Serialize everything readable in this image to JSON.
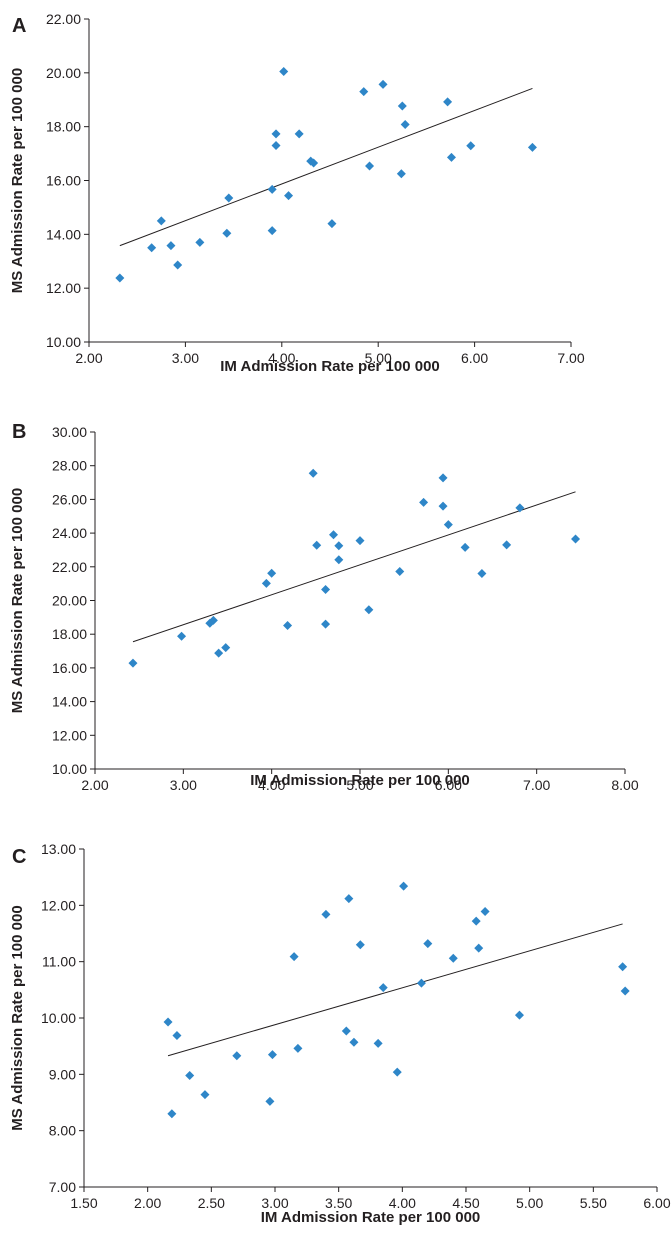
{
  "colors": {
    "marker": "#2e86c8",
    "axis": "#231f20"
  },
  "chart_data": [
    {
      "type": "scatter",
      "panel_label": "A",
      "xlabel": "IM Admission Rate per 100 000",
      "ylabel": "MS Admission Rate per 100 000",
      "xlim": [
        2,
        7
      ],
      "ylim": [
        10,
        22
      ],
      "x_ticks": [
        "2.00",
        "3.00",
        "4.00",
        "5.00",
        "6.00",
        "7.00"
      ],
      "y_ticks": [
        "10.00",
        "12.00",
        "14.00",
        "16.00",
        "18.00",
        "20.00",
        "22.00"
      ],
      "x_tick_values": [
        2,
        3,
        4,
        5,
        6,
        7
      ],
      "y_tick_values": [
        10,
        12,
        14,
        16,
        18,
        20,
        22
      ],
      "points": [
        [
          2.32,
          12.38
        ],
        [
          2.65,
          13.5
        ],
        [
          2.75,
          14.5
        ],
        [
          2.85,
          13.58
        ],
        [
          2.92,
          12.86
        ],
        [
          3.15,
          13.7
        ],
        [
          3.43,
          14.04
        ],
        [
          3.45,
          15.35
        ],
        [
          3.9,
          14.14
        ],
        [
          3.9,
          15.67
        ],
        [
          3.94,
          17.73
        ],
        [
          3.94,
          17.3
        ],
        [
          4.02,
          20.05
        ],
        [
          4.07,
          15.44
        ],
        [
          4.18,
          17.73
        ],
        [
          4.3,
          16.72
        ],
        [
          4.33,
          16.65
        ],
        [
          4.52,
          14.4
        ],
        [
          4.85,
          19.3
        ],
        [
          4.91,
          16.54
        ],
        [
          5.05,
          19.57
        ],
        [
          5.24,
          16.25
        ],
        [
          5.25,
          18.77
        ],
        [
          5.28,
          18.08
        ],
        [
          5.72,
          18.92
        ],
        [
          5.76,
          16.86
        ],
        [
          5.96,
          17.29
        ],
        [
          6.6,
          17.23
        ]
      ],
      "trendline": [
        [
          2.32,
          13.58
        ],
        [
          6.6,
          19.42
        ]
      ]
    },
    {
      "type": "scatter",
      "panel_label": "B",
      "xlabel": "IM Admission Rate per 100 000",
      "ylabel": "MS Admission Rate per 100 000",
      "xlim": [
        2,
        8
      ],
      "ylim": [
        10,
        30
      ],
      "x_ticks": [
        "2.00",
        "3.00",
        "4.00",
        "5.00",
        "6.00",
        "7.00",
        "8.00"
      ],
      "y_ticks": [
        "10.00",
        "12.00",
        "14.00",
        "16.00",
        "18.00",
        "20.00",
        "22.00",
        "24.00",
        "26.00",
        "28.00",
        "30.00"
      ],
      "x_tick_values": [
        2,
        3,
        4,
        5,
        6,
        7,
        8
      ],
      "y_tick_values": [
        10,
        12,
        14,
        16,
        18,
        20,
        22,
        24,
        26,
        28,
        30
      ],
      "points": [
        [
          2.43,
          16.28
        ],
        [
          2.98,
          17.88
        ],
        [
          3.3,
          18.65
        ],
        [
          3.34,
          18.82
        ],
        [
          3.4,
          16.88
        ],
        [
          3.48,
          17.2
        ],
        [
          3.94,
          21.02
        ],
        [
          4.0,
          21.62
        ],
        [
          4.18,
          18.52
        ],
        [
          4.47,
          27.55
        ],
        [
          4.51,
          23.28
        ],
        [
          4.61,
          20.65
        ],
        [
          4.61,
          18.6
        ],
        [
          4.7,
          23.9
        ],
        [
          4.76,
          22.42
        ],
        [
          4.76,
          23.25
        ],
        [
          5.0,
          23.55
        ],
        [
          5.1,
          19.45
        ],
        [
          5.45,
          21.72
        ],
        [
          5.72,
          25.82
        ],
        [
          5.94,
          27.28
        ],
        [
          5.94,
          25.6
        ],
        [
          6.0,
          24.5
        ],
        [
          6.19,
          23.15
        ],
        [
          6.38,
          21.6
        ],
        [
          6.66,
          23.3
        ],
        [
          6.81,
          25.5
        ],
        [
          7.44,
          23.65
        ]
      ],
      "trendline": [
        [
          2.43,
          17.55
        ],
        [
          7.44,
          26.45
        ]
      ]
    },
    {
      "type": "scatter",
      "panel_label": "C",
      "xlabel": "IM Admission Rate per 100 000",
      "ylabel": "MS Admission Rate per 100 000",
      "xlim": [
        1.5,
        6
      ],
      "ylim": [
        7,
        13
      ],
      "x_ticks": [
        "1.50",
        "2.00",
        "2.50",
        "3.00",
        "3.50",
        "4.00",
        "4.50",
        "5.00",
        "5.50",
        "6.00"
      ],
      "y_ticks": [
        "7.00",
        "8.00",
        "9.00",
        "10.00",
        "11.00",
        "12.00",
        "13.00"
      ],
      "x_tick_values": [
        1.5,
        2,
        2.5,
        3,
        3.5,
        4,
        4.5,
        5,
        5.5,
        6
      ],
      "y_tick_values": [
        7,
        8,
        9,
        10,
        11,
        12,
        13
      ],
      "points": [
        [
          2.16,
          9.93
        ],
        [
          2.19,
          8.3
        ],
        [
          2.23,
          9.69
        ],
        [
          2.33,
          8.98
        ],
        [
          2.45,
          8.64
        ],
        [
          2.7,
          9.33
        ],
        [
          2.96,
          8.52
        ],
        [
          2.98,
          9.35
        ],
        [
          3.15,
          11.09
        ],
        [
          3.18,
          9.46
        ],
        [
          3.4,
          11.84
        ],
        [
          3.56,
          9.77
        ],
        [
          3.58,
          12.12
        ],
        [
          3.62,
          9.57
        ],
        [
          3.67,
          11.3
        ],
        [
          3.81,
          9.55
        ],
        [
          3.85,
          10.54
        ],
        [
          3.96,
          9.04
        ],
        [
          4.01,
          12.34
        ],
        [
          4.15,
          10.62
        ],
        [
          4.2,
          11.32
        ],
        [
          4.4,
          11.06
        ],
        [
          4.58,
          11.72
        ],
        [
          4.6,
          11.24
        ],
        [
          4.65,
          11.89
        ],
        [
          4.92,
          10.05
        ],
        [
          5.73,
          10.91
        ],
        [
          5.75,
          10.48
        ]
      ],
      "trendline": [
        [
          2.16,
          9.33
        ],
        [
          5.73,
          11.67
        ]
      ]
    }
  ]
}
